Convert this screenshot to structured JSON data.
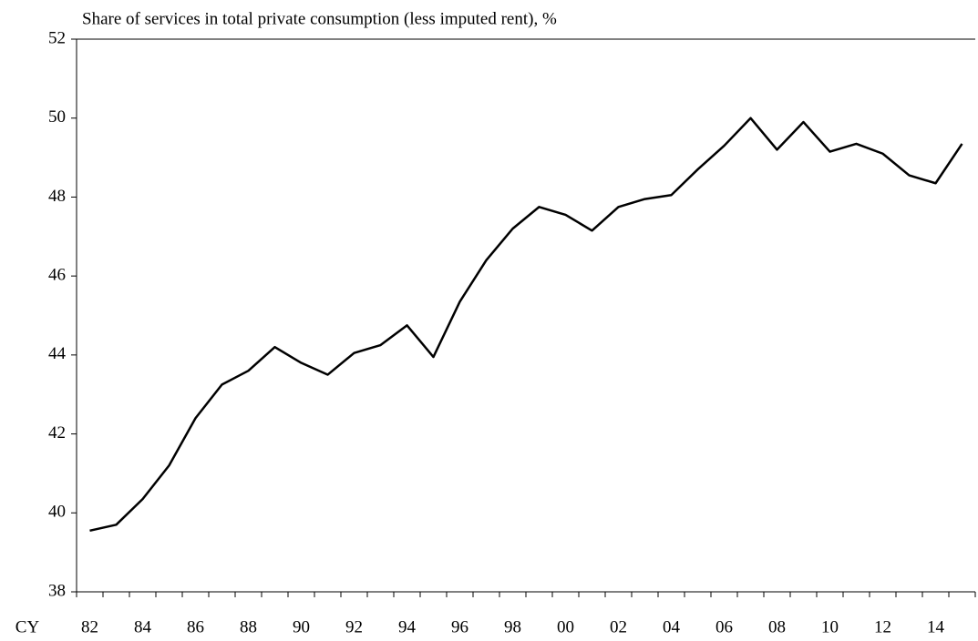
{
  "chart_data": {
    "type": "line",
    "title": "Share of services in total private consumption (less imputed rent), %",
    "x_label": "CY",
    "categories": [
      "82",
      null,
      "84",
      null,
      "86",
      null,
      "88",
      null,
      "90",
      null,
      "92",
      null,
      "94",
      null,
      "96",
      null,
      "98",
      null,
      "00",
      null,
      "02",
      null,
      "04",
      null,
      "06",
      null,
      "08",
      null,
      "10",
      null,
      "12",
      null,
      "14",
      null
    ],
    "series": [
      {
        "name": "Share of services",
        "color": "#000000",
        "values": [
          39.55,
          39.7,
          40.35,
          41.2,
          42.4,
          43.25,
          43.6,
          44.2,
          43.8,
          43.5,
          44.05,
          44.25,
          44.75,
          43.95,
          45.35,
          46.4,
          47.2,
          47.75,
          47.55,
          47.15,
          47.75,
          47.95,
          48.05,
          48.7,
          49.3,
          50.0,
          49.2,
          49.9,
          49.15,
          49.35,
          49.1,
          48.55,
          48.35,
          49.35
        ]
      }
    ],
    "ylim": [
      38,
      52
    ],
    "yticks": [
      38,
      40,
      42,
      44,
      46,
      48,
      50,
      52
    ],
    "grid": false
  }
}
